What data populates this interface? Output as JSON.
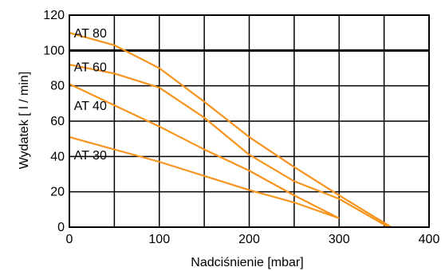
{
  "chart_data": {
    "type": "line",
    "title": "",
    "xlabel": "Nadciśnienie [mbar]",
    "ylabel": "Wydatek [ l / min]",
    "xlim": [
      0,
      400
    ],
    "ylim": [
      0,
      120
    ],
    "xticks": [
      0,
      100,
      200,
      300,
      400
    ],
    "yticks": [
      0,
      20,
      40,
      60,
      80,
      100,
      120
    ],
    "grid": true,
    "x_grid_step": 50,
    "y_grid_step": 20,
    "highlight_line_y": 100,
    "line_color": "#f7941d",
    "series": [
      {
        "name": "AT 80",
        "points": [
          [
            0,
            110
          ],
          [
            50,
            103
          ],
          [
            100,
            90
          ],
          [
            150,
            71
          ],
          [
            200,
            51
          ],
          [
            250,
            34
          ],
          [
            300,
            18
          ],
          [
            358,
            0
          ]
        ]
      },
      {
        "name": "AT 60",
        "points": [
          [
            0,
            92
          ],
          [
            50,
            87
          ],
          [
            100,
            79
          ],
          [
            150,
            62
          ],
          [
            200,
            41
          ],
          [
            250,
            26
          ],
          [
            300,
            16
          ],
          [
            355,
            0
          ]
        ]
      },
      {
        "name": "AT 40",
        "points": [
          [
            0,
            81
          ],
          [
            50,
            69
          ],
          [
            100,
            57
          ],
          [
            150,
            44
          ],
          [
            200,
            32
          ],
          [
            250,
            18
          ],
          [
            300,
            5
          ]
        ]
      },
      {
        "name": "AT 30",
        "points": [
          [
            0,
            51
          ],
          [
            50,
            44
          ],
          [
            100,
            37
          ],
          [
            150,
            29
          ],
          [
            200,
            21
          ],
          [
            250,
            14
          ],
          [
            300,
            5
          ]
        ]
      }
    ],
    "label_anchor_x": 5,
    "label_anchor_y": {
      "AT 80": 110,
      "AT 60": 91,
      "AT 40": 69,
      "AT 30": 41
    }
  }
}
